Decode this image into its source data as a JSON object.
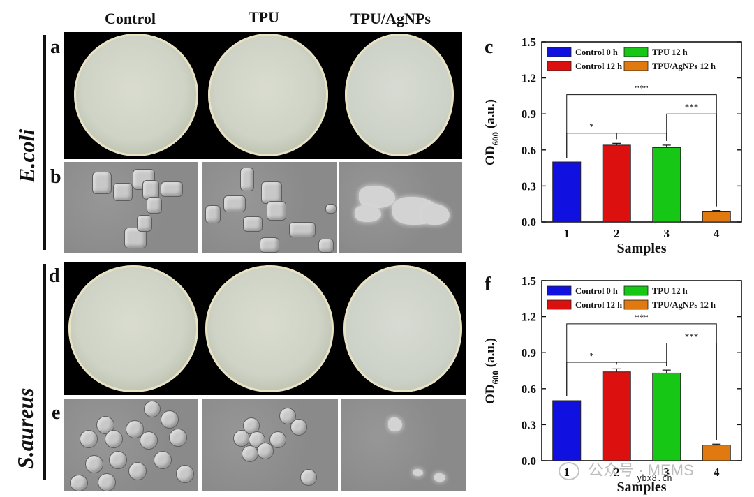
{
  "column_titles": [
    "Control",
    "TPU",
    "TPU/AgNPs"
  ],
  "panel_labels": {
    "a": "a",
    "b": "b",
    "c": "c",
    "d": "d",
    "e": "e",
    "f": "f"
  },
  "species": [
    "E.coli",
    "S.aureus"
  ],
  "watermark": {
    "text": "公众号 · MEMS",
    "site": "ybx8.cn",
    "icon": "wechat-icon"
  },
  "colors": {
    "blue": "#1010e0",
    "red": "#dd1010",
    "green": "#16c716",
    "orange": "#e07a10"
  },
  "chart_data": [
    {
      "panel": "c",
      "type": "bar",
      "xlabel": "Samples",
      "ylabel_main": "OD",
      "ylabel_sub": "600",
      "ylabel_unit": "(a.u.)",
      "categories": [
        "1",
        "2",
        "3",
        "4"
      ],
      "ylim": [
        0,
        1.5
      ],
      "yticks": [
        "0.0",
        "0.3",
        "0.6",
        "0.9",
        "1.2",
        "1.5"
      ],
      "series": [
        {
          "name": "Control 0 h",
          "color": "#1010e0",
          "x": "1",
          "value": 0.5,
          "error": 0.0
        },
        {
          "name": "Control 12 h",
          "color": "#dd1010",
          "x": "2",
          "value": 0.64,
          "error": 0.015
        },
        {
          "name": "TPU 12 h",
          "color": "#16c716",
          "x": "3",
          "value": 0.62,
          "error": 0.02
        },
        {
          "name": "TPU/AgNPs 12 h",
          "color": "#e07a10",
          "x": "4",
          "value": 0.09,
          "error": 0.005
        }
      ],
      "significance": [
        {
          "from": "1",
          "to": "2",
          "level": 0.74,
          "label": "*"
        },
        {
          "from": "3",
          "to": "4",
          "level": 0.9,
          "label": "***"
        },
        {
          "from": "1",
          "to": "4",
          "level": 1.06,
          "label": "***"
        }
      ],
      "legend_position": "top"
    },
    {
      "panel": "f",
      "type": "bar",
      "xlabel": "Samples",
      "ylabel_main": "OD",
      "ylabel_sub": "600",
      "ylabel_unit": "(a.u.)",
      "categories": [
        "1",
        "2",
        "3",
        "4"
      ],
      "ylim": [
        0,
        1.5
      ],
      "yticks": [
        "0.0",
        "0.3",
        "0.6",
        "0.9",
        "1.2",
        "1.5"
      ],
      "series": [
        {
          "name": "Control 0 h",
          "color": "#1010e0",
          "x": "1",
          "value": 0.5,
          "error": 0.0
        },
        {
          "name": "Control 12 h",
          "color": "#dd1010",
          "x": "2",
          "value": 0.74,
          "error": 0.025
        },
        {
          "name": "TPU 12 h",
          "color": "#16c716",
          "x": "3",
          "value": 0.73,
          "error": 0.025
        },
        {
          "name": "TPU/AgNPs 12 h",
          "color": "#e07a10",
          "x": "4",
          "value": 0.13,
          "error": 0.008
        }
      ],
      "significance": [
        {
          "from": "1",
          "to": "2",
          "level": 0.82,
          "label": "*"
        },
        {
          "from": "3",
          "to": "4",
          "level": 0.98,
          "label": "***"
        },
        {
          "from": "1",
          "to": "4",
          "level": 1.14,
          "label": "***"
        }
      ],
      "legend_position": "top"
    }
  ]
}
